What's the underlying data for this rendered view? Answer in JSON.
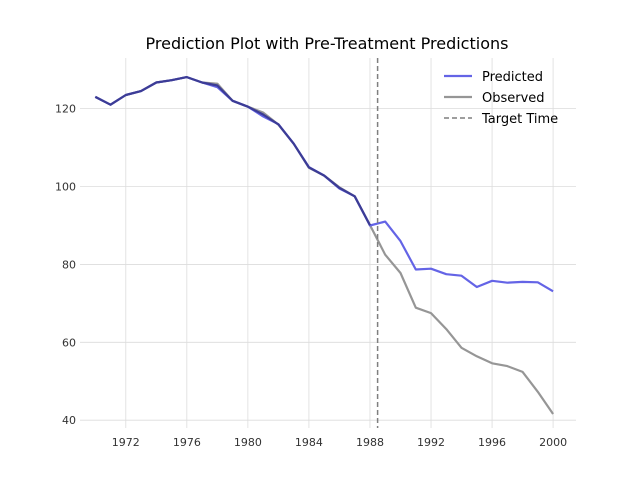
{
  "chart_data": {
    "type": "line",
    "title": "Prediction Plot with Pre-Treatment Predictions",
    "xlabel": "",
    "ylabel": "",
    "xlim": [
      1969,
      2001.5
    ],
    "ylim": [
      38,
      133
    ],
    "xticks": [
      1972,
      1976,
      1980,
      1984,
      1988,
      1992,
      1996,
      2000
    ],
    "yticks": [
      40,
      60,
      80,
      100,
      120
    ],
    "grid": true,
    "legend_position": "top-right",
    "target_time": 1988.5,
    "x": [
      1970,
      1971,
      1972,
      1973,
      1974,
      1975,
      1976,
      1977,
      1978,
      1979,
      1980,
      1981,
      1982,
      1983,
      1984,
      1985,
      1986,
      1987,
      1988,
      1989,
      1990,
      1991,
      1992,
      1993,
      1994,
      1995,
      1996,
      1997,
      1998,
      1999,
      2000
    ],
    "series": [
      {
        "name": "Predicted",
        "color": "#6464e6",
        "values": [
          123.0,
          121.0,
          123.5,
          124.5,
          126.7,
          127.3,
          128.1,
          126.7,
          125.5,
          122.0,
          120.5,
          118.0,
          116.0,
          111.0,
          105.0,
          102.8,
          99.5,
          97.5,
          90.0,
          91.0,
          86.0,
          78.7,
          78.9,
          77.5,
          77.1,
          74.2,
          75.8,
          75.3,
          75.5,
          75.4,
          73.1
        ]
      },
      {
        "name": "Observed",
        "color": "#969696",
        "values": [
          123.0,
          121.0,
          123.5,
          124.5,
          126.7,
          127.3,
          128.1,
          126.7,
          126.4,
          122.0,
          120.5,
          119.0,
          115.9,
          111.0,
          104.8,
          102.8,
          99.8,
          97.5,
          90.1,
          82.5,
          77.8,
          68.9,
          67.5,
          63.4,
          58.6,
          56.4,
          54.6,
          53.9,
          52.4,
          47.3,
          41.6
        ]
      }
    ],
    "legend": {
      "predicted": "Predicted",
      "observed": "Observed",
      "target": "Target Time"
    },
    "colors": {
      "overlap": "#3c3c96",
      "target_line": "#7f7f7f"
    }
  }
}
